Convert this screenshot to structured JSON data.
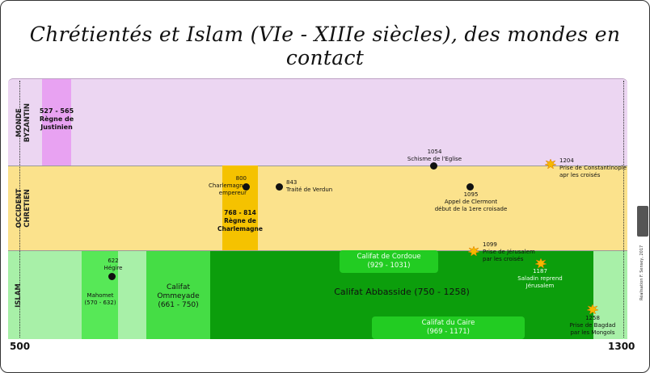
{
  "title": "Chrétientés et Islam (VIe - XIIIe siècles), des mondes en contact",
  "bands": {
    "byzantine": "MONDE\nBYZANTIN",
    "occident": "OCCIDENT\nCHRETIEN",
    "islam": "ISLAM"
  },
  "axis": {
    "start": "500",
    "end": "1300"
  },
  "byzantine": {
    "justinien": "527 - 565\nRègne de\nJustinien",
    "schisme": "1054\nSchisme de l'Eglise",
    "constantinople": "1204\nPrise de  Constantinople\napr les croisés"
  },
  "occident": {
    "charlemagne_emp": "800\nCharlemagne\nempereur",
    "verdun": "843\nTraité de Verdun",
    "regne_charlemagne": "768 - 814\nRègne de\nCharlemagne",
    "clermont": "1095\nAppel de Clermont\ndébut de la 1ere croisade"
  },
  "islam": {
    "hegire": "622\nHégire",
    "mahomet": "Mahomet\n(570 - 632)",
    "omeyade": "Califat\nOmmeyade\n(661 - 750)",
    "cordoue": "Califat de Cordoue\n(929 - 1031)",
    "abbasside": "Califat Abbasside (750 - 1258)",
    "caire": "Califat du Caire\n(969 - 1171)",
    "jerusalem_1099": "1099\nPrise de Jérusalem\npar les croisés",
    "saladin": "1187\nSaladin reprend\nJérusalem",
    "bagdad": "1258\nPrise de Bagdad\npar les Mongols"
  },
  "credit": "Réalisation F. Sensey, 2017",
  "colors": {
    "byzantine_bg": "#ecd6f2",
    "justinien": "#e8a2f2",
    "occident_bg": "#fbe28c",
    "charlemagne": "#f5c200",
    "islam_bg": "#a8f0a8",
    "mahomet": "#57e857",
    "omeyade": "#45dd45",
    "abbasside": "#0c9e0c",
    "cordoue_caire": "#22cc22"
  },
  "icons": {
    "star": "explosion-star-icon",
    "dot": "event-dot"
  }
}
